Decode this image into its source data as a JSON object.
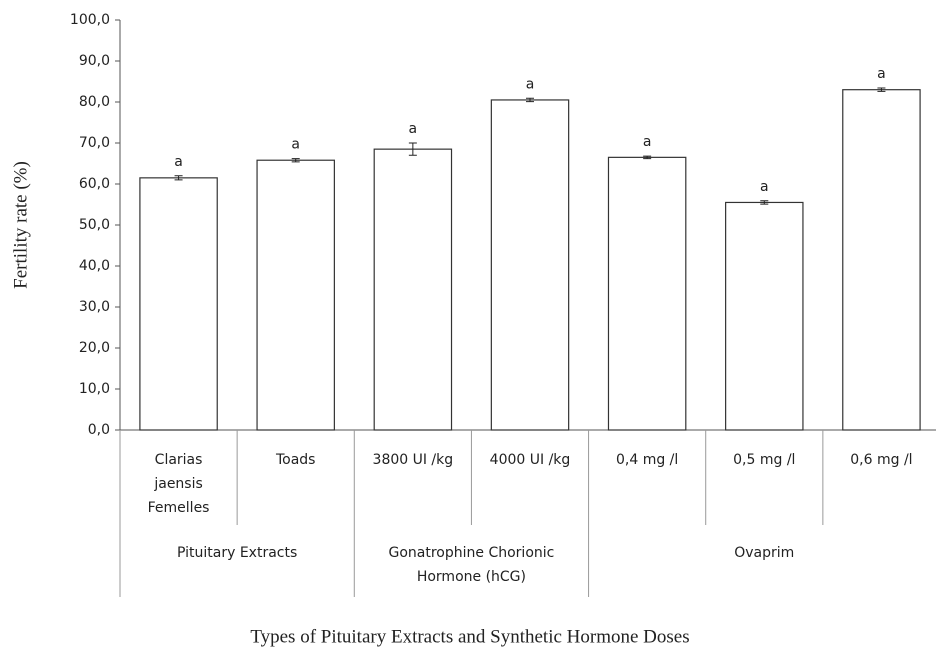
{
  "chart_data": {
    "type": "bar",
    "y_label": "Fertility rate (%)",
    "x_label": "Types of Pituitary Extracts and Synthetic Hormone Doses",
    "categories": [
      "Clarias jaensis Femelles",
      "Toads",
      "3800 UI /kg",
      "4000 UI /kg",
      "0,4 mg /l",
      "0,5 mg /l",
      "0,6 mg /l"
    ],
    "groups": [
      {
        "name": "Pituitary Extracts",
        "size": 2
      },
      {
        "name": "Gonatrophine Chorionic Hormone (hCG)",
        "size": 2
      },
      {
        "name": "Ovaprim",
        "size": 3
      }
    ],
    "values": [
      61.5,
      65.8,
      68.5,
      80.5,
      66.5,
      55.5,
      83.0
    ],
    "errors": [
      0.5,
      0.4,
      1.5,
      0.4,
      0.3,
      0.4,
      0.4
    ],
    "letters": [
      "a",
      "a",
      "a",
      "a",
      "a",
      "a",
      "a"
    ],
    "color": "#ffffff",
    "edge_color": "#333333",
    "ylim": [
      0,
      100
    ],
    "yticks": [
      {
        "value": 0,
        "label": "0,0"
      },
      {
        "value": 10,
        "label": "10,0"
      },
      {
        "value": 20,
        "label": "20,0"
      },
      {
        "value": 30,
        "label": "30,0"
      },
      {
        "value": 40,
        "label": "40,0"
      },
      {
        "value": 50,
        "label": "50,0"
      },
      {
        "value": 60,
        "label": "60,0"
      },
      {
        "value": 70,
        "label": "70,0"
      },
      {
        "value": 80,
        "label": "80,0"
      },
      {
        "value": 90,
        "label": "90,0"
      },
      {
        "value": 100,
        "label": "100,0"
      }
    ],
    "grid": false
  }
}
